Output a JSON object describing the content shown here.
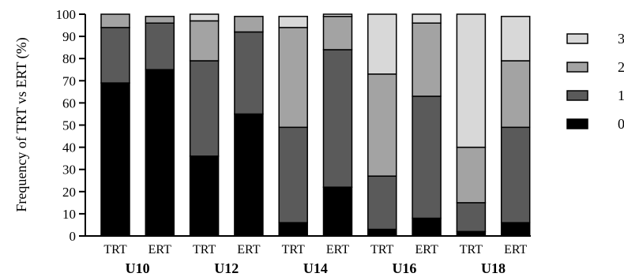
{
  "chart_data": {
    "type": "bar",
    "stacked": true,
    "ylabel": "Frequency of TRT vs ERT (%)",
    "xlabel": "",
    "ylim": [
      0,
      100
    ],
    "yticks": [
      0,
      10,
      20,
      30,
      40,
      50,
      60,
      70,
      80,
      90,
      100
    ],
    "categories": [
      "TRT",
      "ERT",
      "TRT",
      "ERT",
      "TRT",
      "ERT",
      "TRT",
      "ERT",
      "TRT",
      "ERT"
    ],
    "groups": [
      {
        "label": "U10",
        "span": [
          0,
          1
        ]
      },
      {
        "label": "U12",
        "span": [
          2,
          3
        ]
      },
      {
        "label": "U14",
        "span": [
          4,
          5
        ]
      },
      {
        "label": "U16",
        "span": [
          6,
          7
        ]
      },
      {
        "label": "U18",
        "span": [
          8,
          9
        ]
      }
    ],
    "series": [
      {
        "name": "0",
        "color": "#000000",
        "values": [
          69,
          75,
          36,
          55,
          6,
          22,
          3,
          8,
          2,
          6
        ]
      },
      {
        "name": "1",
        "color": "#5a5a5a",
        "values": [
          25,
          21,
          43,
          37,
          43,
          62,
          24,
          55,
          13,
          43
        ]
      },
      {
        "name": "2",
        "color": "#a3a3a3",
        "values": [
          6,
          3,
          18,
          7,
          45,
          15,
          46,
          33,
          25,
          30
        ]
      },
      {
        "name": "3",
        "color": "#d8d8d8",
        "values": [
          0,
          0,
          3,
          0,
          5,
          1,
          27,
          4,
          60,
          20
        ]
      }
    ],
    "legend_order": [
      "3",
      "2",
      "1",
      "0"
    ],
    "legend_position": "right"
  }
}
